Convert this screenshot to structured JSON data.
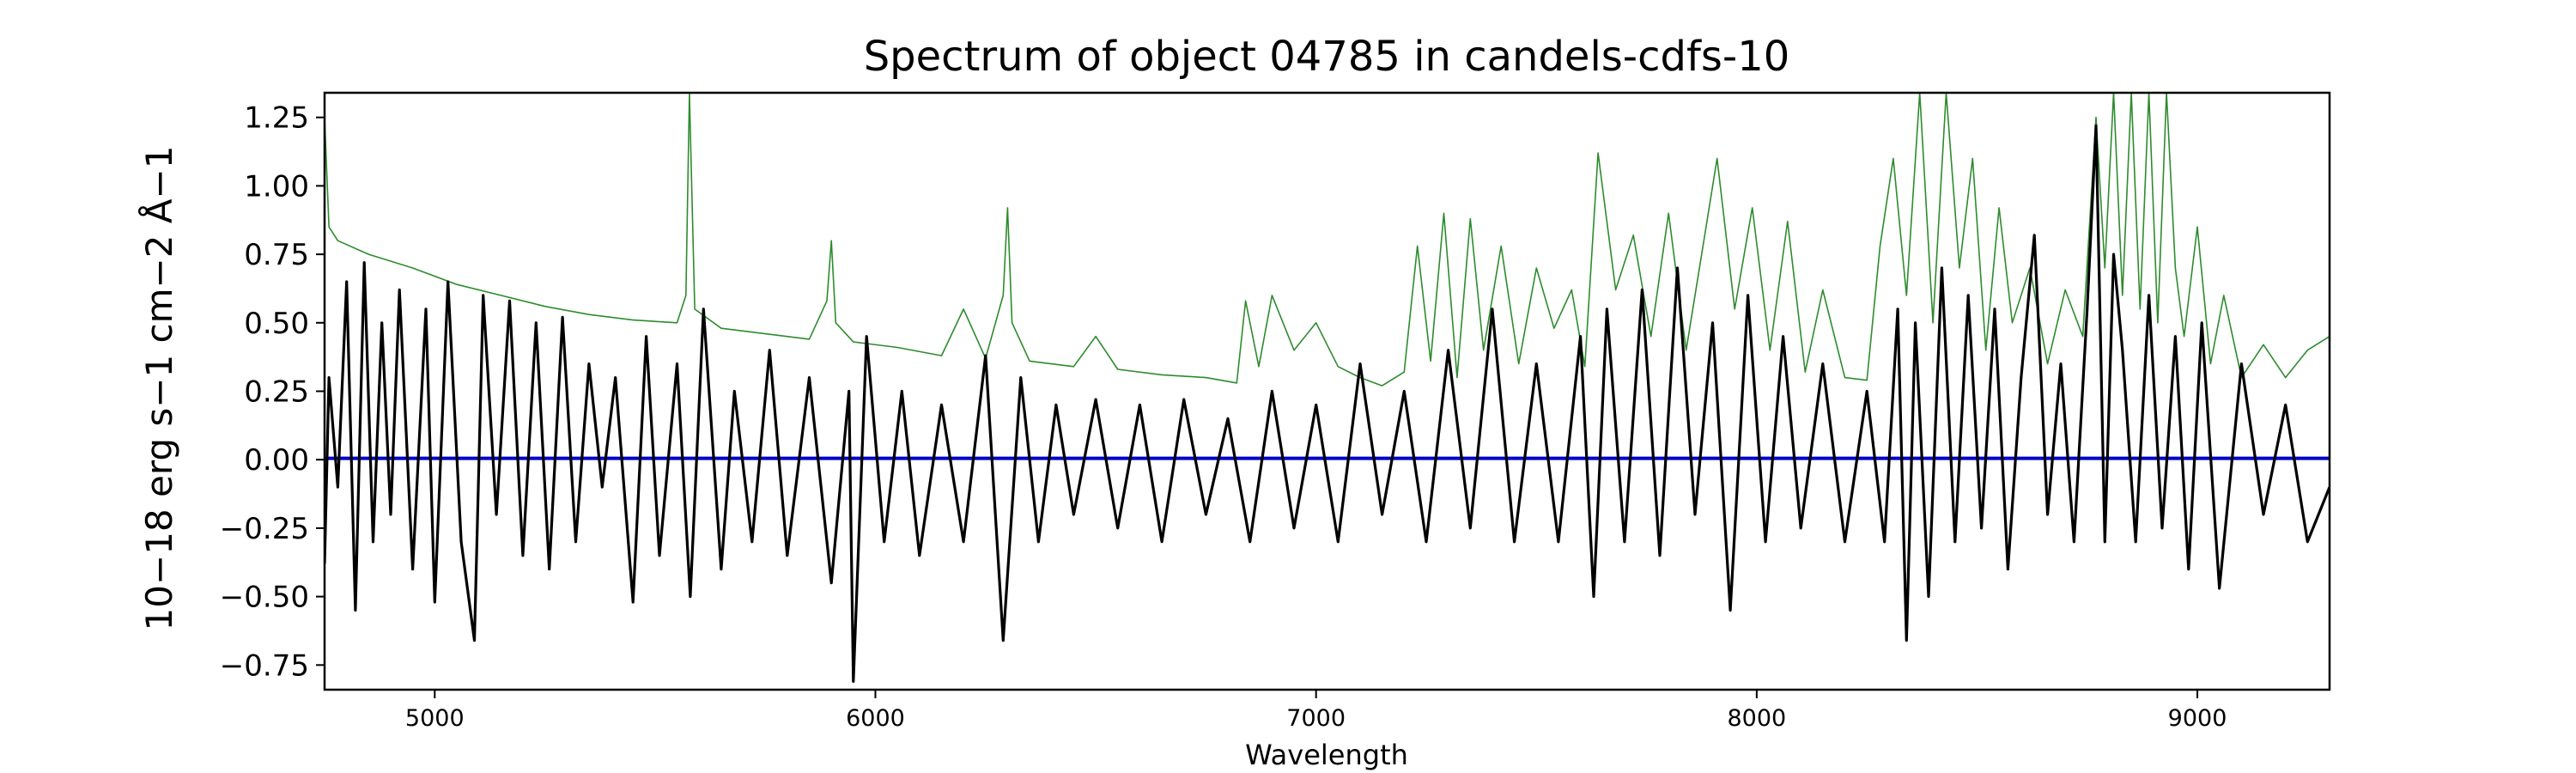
{
  "chart_data": {
    "type": "line",
    "title": "Spectrum of object 04785 in candels-cdfs-10",
    "xlabel": "Wavelength",
    "ylabel": "10−18 erg s−1 cm−2 Å−1",
    "xlim": [
      4750,
      9300
    ],
    "ylim": [
      -0.84,
      1.34
    ],
    "xticks": [
      5000,
      6000,
      7000,
      8000,
      9000
    ],
    "yticks": [
      -0.75,
      -0.5,
      -0.25,
      0.0,
      0.25,
      0.5,
      0.75,
      1.0,
      1.25
    ],
    "ytick_labels": [
      "−0.75",
      "−0.50",
      "−0.25",
      "0.00",
      "0.25",
      "0.50",
      "0.75",
      "1.00",
      "1.25"
    ],
    "grid": false,
    "series": [
      {
        "role": "error spectrum",
        "color": "#2e8b2e",
        "x": [
          4750,
          4760,
          4780,
          4850,
          4950,
          5050,
          5150,
          5250,
          5350,
          5450,
          5550,
          5570,
          5578,
          5590,
          5650,
          5750,
          5850,
          5890,
          5900,
          5910,
          5950,
          6050,
          6150,
          6200,
          6250,
          6290,
          6300,
          6310,
          6350,
          6450,
          6500,
          6550,
          6650,
          6750,
          6820,
          6840,
          6870,
          6900,
          6950,
          7000,
          7050,
          7100,
          7150,
          7200,
          7230,
          7260,
          7290,
          7320,
          7350,
          7380,
          7420,
          7460,
          7500,
          7540,
          7580,
          7610,
          7640,
          7680,
          7720,
          7760,
          7800,
          7840,
          7880,
          7910,
          7950,
          7990,
          8030,
          8070,
          8110,
          8150,
          8200,
          8250,
          8280,
          8310,
          8340,
          8370,
          8400,
          8430,
          8460,
          8490,
          8520,
          8550,
          8580,
          8620,
          8660,
          8700,
          8740,
          8770,
          8790,
          8810,
          8830,
          8850,
          8870,
          8890,
          8910,
          8930,
          8950,
          8970,
          9000,
          9030,
          9060,
          9100,
          9150,
          9200,
          9250,
          9300
        ],
        "values": [
          1.25,
          0.85,
          0.8,
          0.75,
          0.7,
          0.64,
          0.6,
          0.56,
          0.53,
          0.51,
          0.5,
          0.6,
          1.34,
          0.55,
          0.48,
          0.46,
          0.44,
          0.58,
          0.8,
          0.5,
          0.43,
          0.41,
          0.38,
          0.55,
          0.37,
          0.6,
          0.92,
          0.5,
          0.36,
          0.34,
          0.45,
          0.33,
          0.31,
          0.3,
          0.28,
          0.58,
          0.34,
          0.6,
          0.4,
          0.5,
          0.34,
          0.3,
          0.27,
          0.32,
          0.78,
          0.36,
          0.9,
          0.3,
          0.88,
          0.4,
          0.78,
          0.35,
          0.7,
          0.48,
          0.62,
          0.34,
          1.12,
          0.62,
          0.82,
          0.45,
          0.9,
          0.4,
          0.8,
          1.1,
          0.55,
          0.92,
          0.4,
          0.87,
          0.32,
          0.62,
          0.3,
          0.29,
          0.78,
          1.1,
          0.6,
          1.34,
          0.5,
          1.34,
          0.7,
          1.1,
          0.4,
          0.92,
          0.5,
          0.7,
          0.35,
          0.62,
          0.45,
          1.25,
          0.7,
          1.34,
          0.6,
          1.34,
          0.55,
          1.34,
          0.5,
          1.34,
          0.7,
          0.45,
          0.85,
          0.35,
          0.6,
          0.3,
          0.42,
          0.3,
          0.4,
          0.45
        ]
      },
      {
        "role": "model",
        "color": "#0000cc",
        "x": [
          4750,
          9300
        ],
        "values": [
          0.005,
          0.005
        ]
      },
      {
        "role": "observed flux",
        "color": "#000000",
        "x": [
          4750,
          4760,
          4780,
          4800,
          4820,
          4840,
          4860,
          4880,
          4900,
          4920,
          4950,
          4980,
          5000,
          5030,
          5060,
          5090,
          5110,
          5140,
          5170,
          5200,
          5230,
          5260,
          5290,
          5320,
          5350,
          5380,
          5410,
          5450,
          5480,
          5510,
          5550,
          5580,
          5610,
          5650,
          5680,
          5720,
          5760,
          5800,
          5850,
          5900,
          5940,
          5950,
          5980,
          6020,
          6060,
          6100,
          6150,
          6200,
          6250,
          6290,
          6330,
          6370,
          6410,
          6450,
          6500,
          6550,
          6600,
          6650,
          6700,
          6750,
          6800,
          6850,
          6900,
          6950,
          7000,
          7050,
          7100,
          7150,
          7200,
          7250,
          7300,
          7350,
          7400,
          7450,
          7500,
          7550,
          7600,
          7630,
          7660,
          7700,
          7740,
          7780,
          7820,
          7860,
          7900,
          7940,
          7980,
          8020,
          8060,
          8100,
          8150,
          8200,
          8250,
          8290,
          8320,
          8340,
          8360,
          8390,
          8420,
          8450,
          8480,
          8510,
          8540,
          8570,
          8600,
          8630,
          8660,
          8690,
          8720,
          8750,
          8770,
          8790,
          8810,
          8830,
          8860,
          8890,
          8920,
          8950,
          8980,
          9010,
          9050,
          9100,
          9150,
          9200,
          9250,
          9300
        ],
        "values": [
          -0.38,
          0.3,
          -0.1,
          0.65,
          -0.55,
          0.72,
          -0.3,
          0.5,
          -0.2,
          0.62,
          -0.4,
          0.55,
          -0.52,
          0.65,
          -0.3,
          -0.66,
          0.6,
          -0.2,
          0.58,
          -0.35,
          0.5,
          -0.4,
          0.52,
          -0.3,
          0.35,
          -0.1,
          0.3,
          -0.52,
          0.45,
          -0.35,
          0.35,
          -0.5,
          0.55,
          -0.4,
          0.25,
          -0.3,
          0.4,
          -0.35,
          0.3,
          -0.45,
          0.25,
          -0.81,
          0.45,
          -0.3,
          0.25,
          -0.35,
          0.2,
          -0.3,
          0.38,
          -0.66,
          0.3,
          -0.3,
          0.2,
          -0.2,
          0.22,
          -0.25,
          0.2,
          -0.3,
          0.22,
          -0.2,
          0.15,
          -0.3,
          0.25,
          -0.25,
          0.2,
          -0.3,
          0.35,
          -0.2,
          0.25,
          -0.3,
          0.4,
          -0.25,
          0.55,
          -0.3,
          0.35,
          -0.3,
          0.45,
          -0.5,
          0.55,
          -0.3,
          0.62,
          -0.35,
          0.7,
          -0.2,
          0.5,
          -0.55,
          0.6,
          -0.3,
          0.45,
          -0.25,
          0.35,
          -0.3,
          0.25,
          -0.3,
          0.55,
          -0.66,
          0.5,
          -0.5,
          0.7,
          -0.3,
          0.6,
          -0.25,
          0.55,
          -0.4,
          0.3,
          0.82,
          -0.2,
          0.35,
          -0.3,
          0.55,
          1.22,
          -0.3,
          0.75,
          0.4,
          -0.3,
          0.6,
          -0.25,
          0.45,
          -0.4,
          0.5,
          -0.47,
          0.35,
          -0.2,
          0.2,
          -0.3,
          -0.1
        ]
      }
    ]
  }
}
